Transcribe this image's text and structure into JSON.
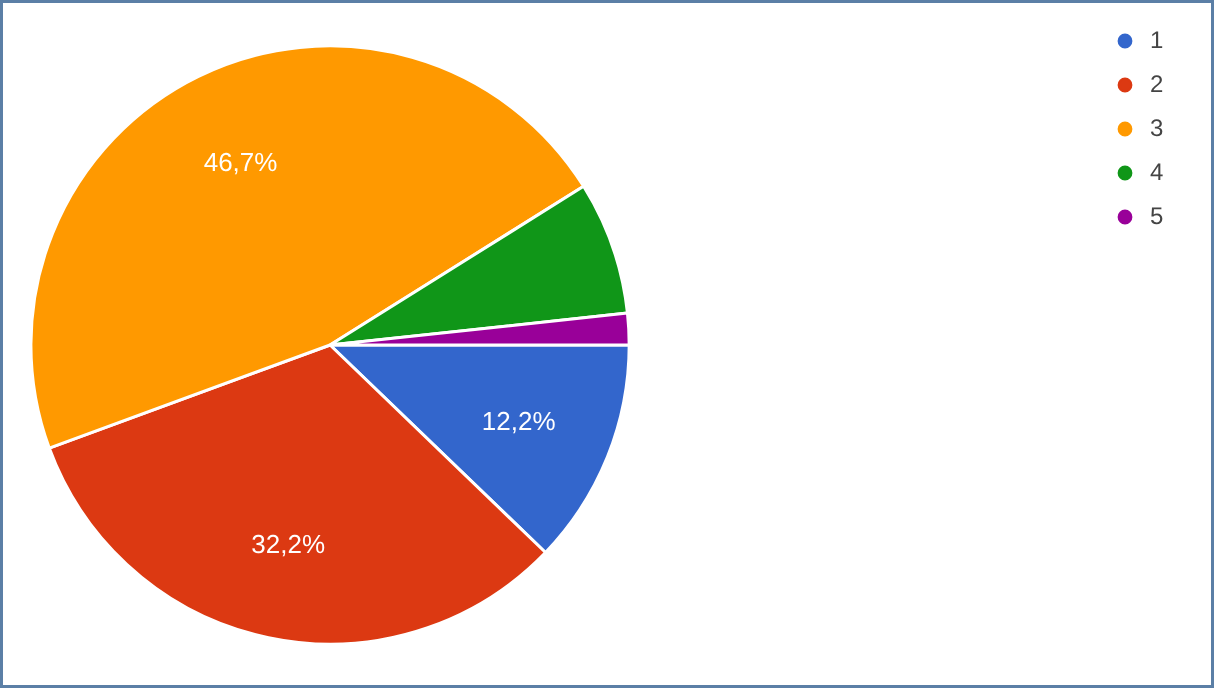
{
  "chart_data": {
    "type": "pie",
    "categories": [
      "1",
      "2",
      "3",
      "4",
      "5"
    ],
    "values": [
      12.2,
      32.2,
      46.7,
      7.2,
      1.7
    ],
    "colors": [
      "#3366cc",
      "#dc3912",
      "#ff9900",
      "#109618",
      "#990099"
    ],
    "value_labels": [
      "12,2%",
      "32,2%",
      "46,7%",
      null,
      null
    ],
    "legend": "top right"
  }
}
